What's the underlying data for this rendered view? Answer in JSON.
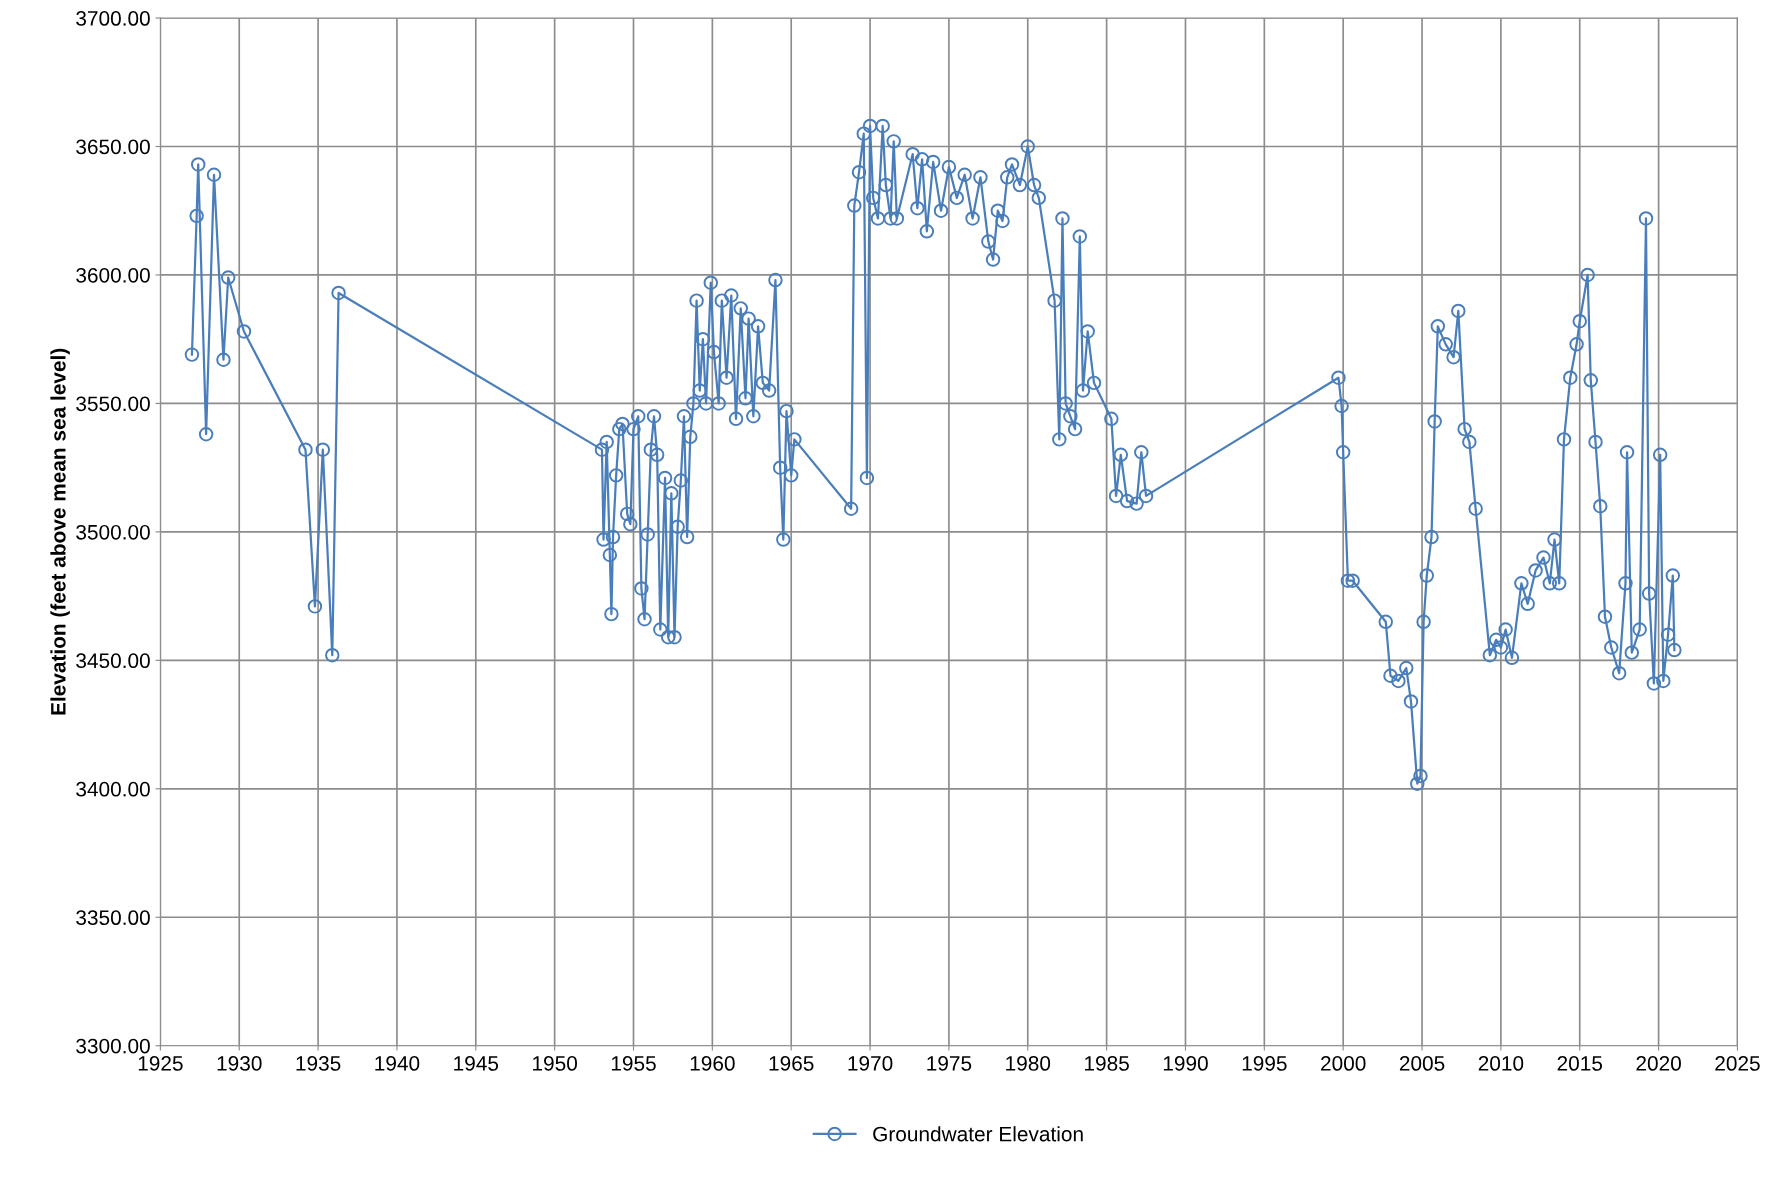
{
  "chart_data": {
    "type": "line",
    "ylabel": "Elevation (feet above mean sea level)",
    "xlim": [
      1925,
      2025
    ],
    "xticks": [
      1925,
      1930,
      1935,
      1940,
      1945,
      1950,
      1955,
      1960,
      1965,
      1970,
      1975,
      1980,
      1985,
      1990,
      1995,
      2000,
      2005,
      2010,
      2015,
      2020,
      2025
    ],
    "ylim": [
      3300,
      3700
    ],
    "yticks": [
      {
        "value": 3300,
        "label": "3300.00"
      },
      {
        "value": 3350,
        "label": "3350.00"
      },
      {
        "value": 3400,
        "label": "3400.00"
      },
      {
        "value": 3450,
        "label": "3450.00"
      },
      {
        "value": 3500,
        "label": "3500.00"
      },
      {
        "value": 3550,
        "label": "3550.00"
      },
      {
        "value": 3600,
        "label": "3600.00"
      },
      {
        "value": 3650,
        "label": "3650.00"
      },
      {
        "value": 3700,
        "label": "3700.00"
      }
    ],
    "grid": true,
    "legend": "bottom",
    "marker": "circle",
    "line_style": "solid",
    "series": [
      {
        "name": "Groundwater Elevation",
        "color": "#4a7ebb",
        "x": [
          1927.0,
          1927.3,
          1927.4,
          1927.9,
          1928.4,
          1929.0,
          1929.3,
          1930.3,
          1934.2,
          1934.8,
          1935.3,
          1935.9,
          1936.3,
          1953.0,
          1953.1,
          1953.3,
          1953.5,
          1953.6,
          1953.7,
          1953.9,
          1954.1,
          1954.3,
          1954.6,
          1954.8,
          1955.0,
          1955.3,
          1955.5,
          1955.7,
          1955.9,
          1956.1,
          1956.3,
          1956.5,
          1956.7,
          1957.0,
          1957.2,
          1957.4,
          1957.6,
          1957.8,
          1958.0,
          1958.2,
          1958.4,
          1958.6,
          1958.8,
          1959.0,
          1959.2,
          1959.4,
          1959.6,
          1959.9,
          1960.1,
          1960.4,
          1960.6,
          1960.9,
          1961.2,
          1961.5,
          1961.8,
          1962.1,
          1962.3,
          1962.6,
          1962.9,
          1963.2,
          1963.6,
          1964.0,
          1964.3,
          1964.5,
          1964.7,
          1965.0,
          1965.2,
          1968.8,
          1969.0,
          1969.3,
          1969.6,
          1969.8,
          1970.0,
          1970.2,
          1970.5,
          1970.8,
          1971.0,
          1971.3,
          1971.5,
          1971.7,
          1972.7,
          1973.0,
          1973.3,
          1973.6,
          1974.0,
          1974.5,
          1975.0,
          1975.5,
          1976.0,
          1976.5,
          1977.0,
          1977.5,
          1977.8,
          1978.1,
          1978.4,
          1978.7,
          1979.0,
          1979.5,
          1980.0,
          1980.4,
          1980.7,
          1981.7,
          1982.0,
          1982.2,
          1982.4,
          1982.7,
          1983.0,
          1983.3,
          1983.5,
          1983.8,
          1984.2,
          1985.3,
          1985.6,
          1985.9,
          1986.3,
          1986.9,
          1987.2,
          1987.5,
          1999.7,
          1999.9,
          2000.0,
          2000.3,
          2000.6,
          2002.7,
          2003.0,
          2003.5,
          2004.0,
          2004.3,
          2004.7,
          2004.9,
          2005.1,
          2005.3,
          2005.6,
          2005.8,
          2006.0,
          2006.5,
          2007.0,
          2007.3,
          2007.7,
          2008.0,
          2008.4,
          2009.3,
          2009.7,
          2010.0,
          2010.3,
          2010.7,
          2011.3,
          2011.7,
          2012.2,
          2012.7,
          2013.1,
          2013.4,
          2013.7,
          2014.0,
          2014.4,
          2014.8,
          2015.0,
          2015.5,
          2015.7,
          2016.0,
          2016.3,
          2016.6,
          2017.0,
          2017.5,
          2017.9,
          2018.0,
          2018.3,
          2018.8,
          2019.2,
          2019.4,
          2019.7,
          2020.1,
          2020.3,
          2020.6,
          2020.9,
          2021.0
        ],
        "values": [
          3569,
          3623,
          3643,
          3538,
          3639,
          3567,
          3599,
          3578,
          3532,
          3471,
          3532,
          3452,
          3593,
          3532,
          3497,
          3535,
          3491,
          3468,
          3498,
          3522,
          3540,
          3542,
          3507,
          3503,
          3540,
          3545,
          3478,
          3466,
          3499,
          3532,
          3545,
          3530,
          3462,
          3521,
          3459,
          3515,
          3459,
          3502,
          3520,
          3545,
          3498,
          3537,
          3550,
          3590,
          3555,
          3575,
          3550,
          3597,
          3570,
          3550,
          3590,
          3560,
          3592,
          3544,
          3587,
          3552,
          3583,
          3545,
          3580,
          3558,
          3555,
          3598,
          3525,
          3497,
          3547,
          3522,
          3536,
          3509,
          3627,
          3640,
          3655,
          3521,
          3658,
          3630,
          3622,
          3658,
          3635,
          3622,
          3652,
          3622,
          3647,
          3626,
          3645,
          3617,
          3644,
          3625,
          3642,
          3630,
          3639,
          3622,
          3638,
          3613,
          3606,
          3625,
          3621,
          3638,
          3643,
          3635,
          3650,
          3635,
          3630,
          3590,
          3536,
          3622,
          3550,
          3545,
          3540,
          3615,
          3555,
          3578,
          3558,
          3544,
          3514,
          3530,
          3512,
          3511,
          3531,
          3514,
          3560,
          3549,
          3531,
          3481,
          3481,
          3465,
          3444,
          3442,
          3447,
          3434,
          3402,
          3405,
          3465,
          3483,
          3498,
          3543,
          3580,
          3573,
          3568,
          3586,
          3540,
          3535,
          3509,
          3452,
          3458,
          3455,
          3462,
          3451,
          3480,
          3472,
          3485,
          3490,
          3480,
          3497,
          3480,
          3536,
          3560,
          3573,
          3582,
          3600,
          3559,
          3535,
          3510,
          3467,
          3455,
          3445,
          3480,
          3531,
          3453,
          3462,
          3622,
          3476,
          3441,
          3530,
          3442,
          3460,
          3483,
          3454
        ]
      }
    ]
  }
}
